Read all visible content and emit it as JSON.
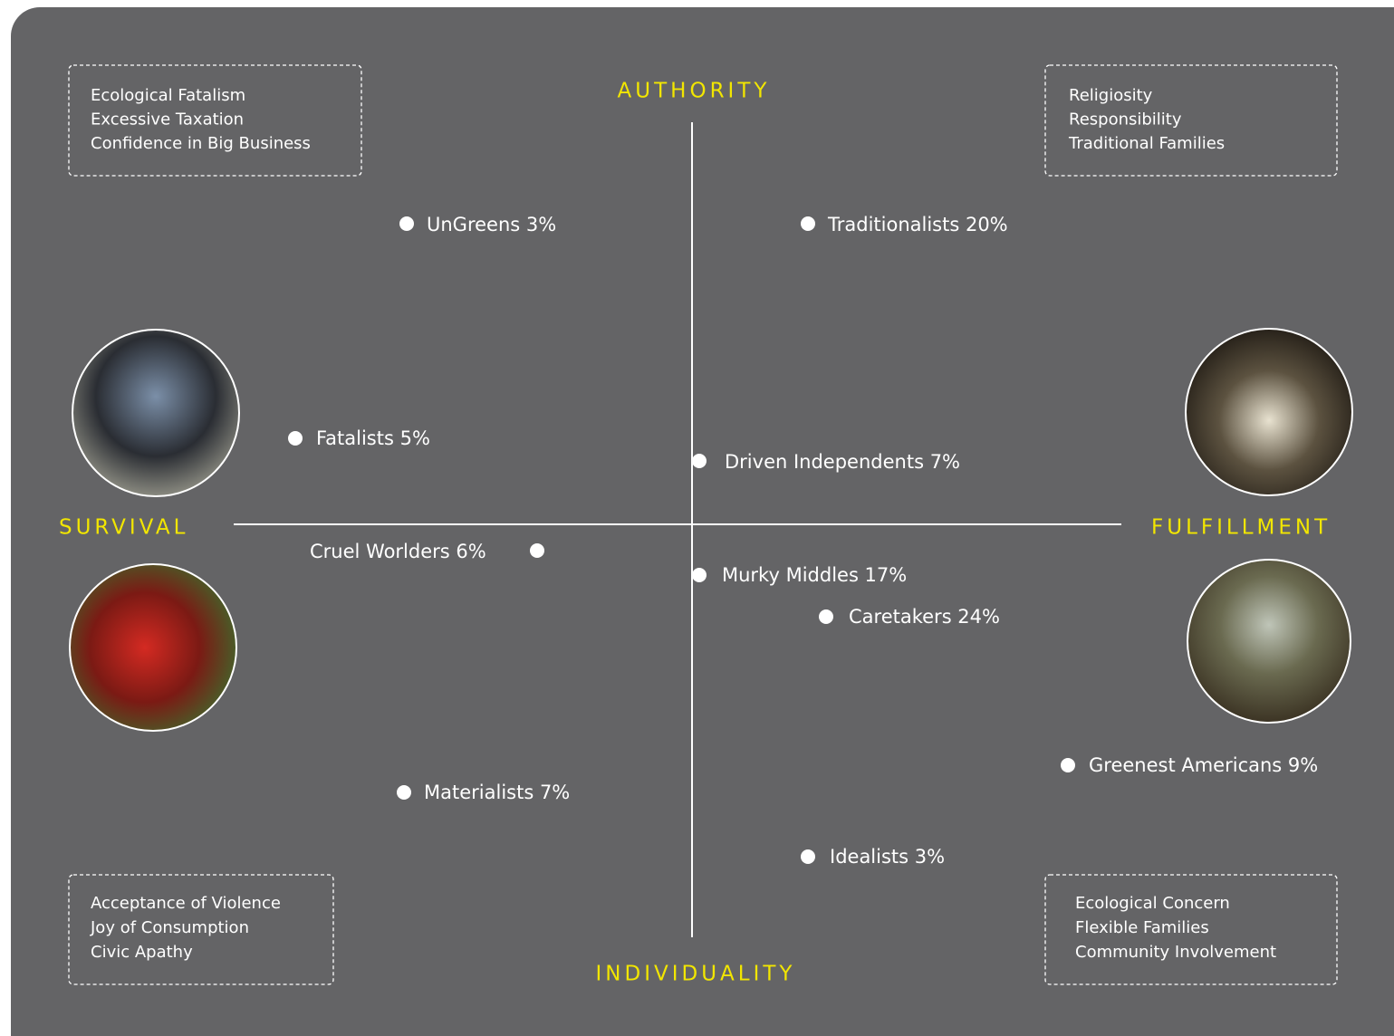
{
  "axes": {
    "top": "AUTHORITY",
    "bottom": "INDIVIDUALITY",
    "left": "SURVIVAL",
    "right": "FULFILLMENT"
  },
  "corners": {
    "top_left": [
      "Ecological Fatalism",
      "Excessive Taxation",
      "Confidence in Big Business"
    ],
    "top_right": [
      "Religiosity",
      "Responsibility",
      "Traditional Families"
    ],
    "bottom_left": [
      "Acceptance of Violence",
      "Joy of Consumption",
      "Civic Apathy"
    ],
    "bottom_right": [
      "Ecological Concern",
      "Flexible Families",
      "Community Involvement"
    ]
  },
  "segments": [
    "UnGreens 3%",
    "Traditionalists 20%",
    "Fatalists 5%",
    "Driven Independents 7%",
    "Cruel Worlders 6%",
    "Murky Middles 17%",
    "Caretakers 24%",
    "Greenest Americans 9%",
    "Materialists 7%",
    "Idealists 3%"
  ]
}
